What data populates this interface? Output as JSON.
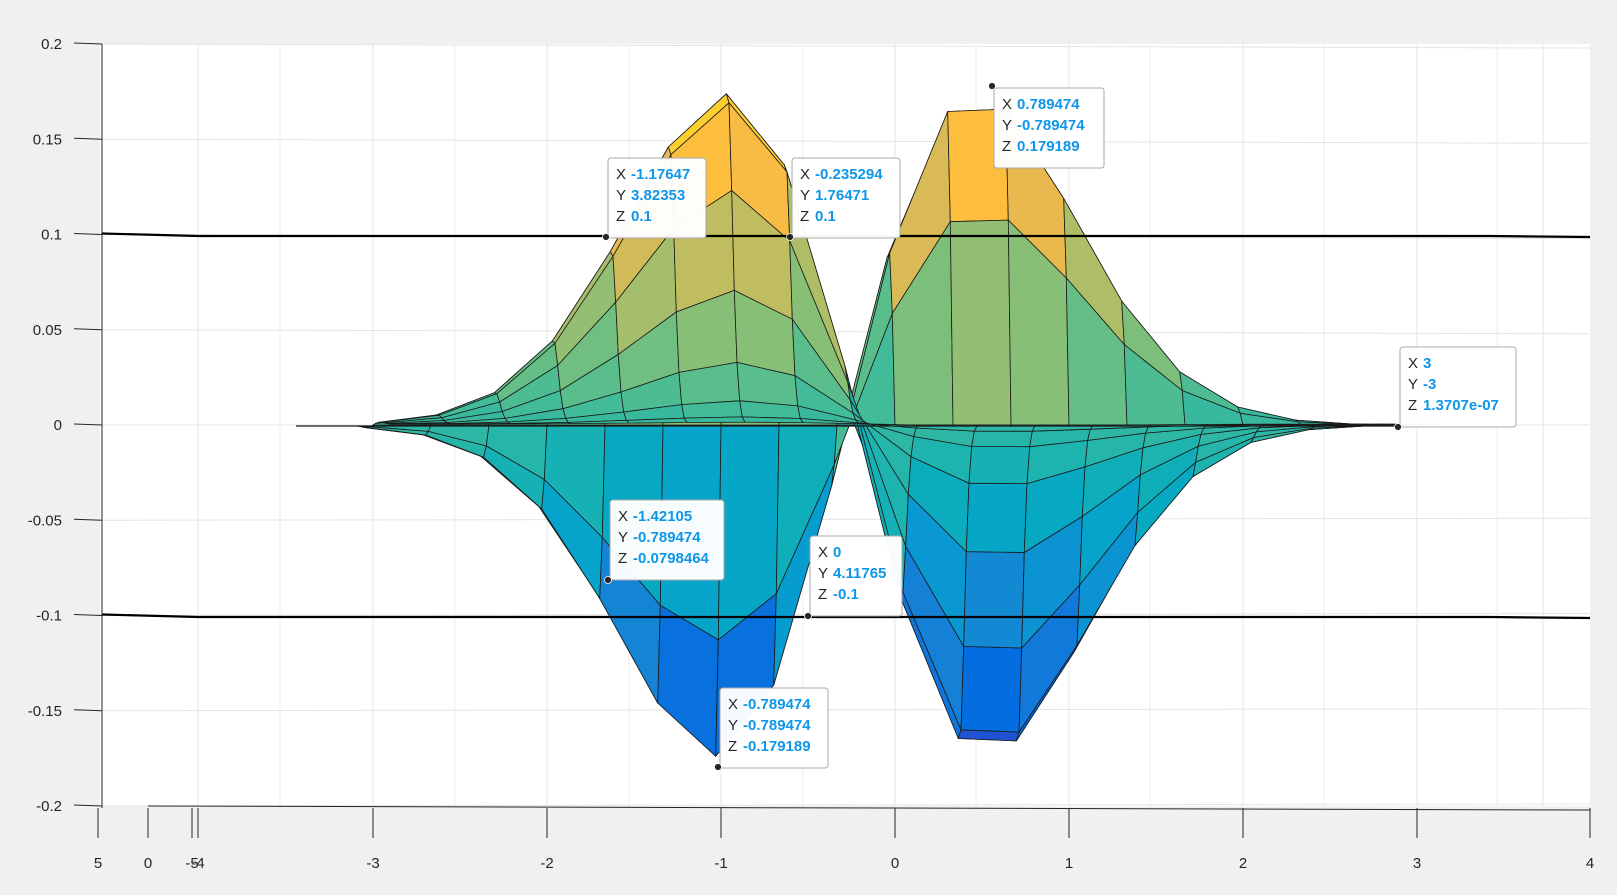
{
  "chart_data": {
    "type": "surface",
    "view": "3-D surface plot of the product of two Gaussian-type functions, seen nearly side-on along the y axis",
    "colormap": "parula",
    "grid": true,
    "z_axis": {
      "ticks": [
        "0.2",
        "0.15",
        "0.1",
        "0.05",
        "0",
        "-0.05",
        "-0.1",
        "-0.15",
        "-0.2"
      ],
      "range": [
        -0.2,
        0.2
      ]
    },
    "x_axis": {
      "ticks": [
        "5",
        "0",
        "-5",
        "-4",
        "-3",
        "-2",
        "-1",
        "0",
        "1",
        "2",
        "3",
        "4"
      ],
      "range": [
        -4,
        4
      ]
    },
    "contour_planes": [
      0.1,
      -0.1
    ],
    "peaks": [
      {
        "x": -1.0,
        "z": 0.179
      },
      {
        "x": 0.5,
        "z": 0.179
      },
      {
        "x": -1.0,
        "z": -0.179
      },
      {
        "x": 0.5,
        "z": -0.179
      }
    ],
    "datatips": [
      {
        "x": "-1.17647",
        "y": "3.82353",
        "z": "0.1"
      },
      {
        "x": "-0.235294",
        "y": "1.76471",
        "z": "0.1"
      },
      {
        "x": "0.789474",
        "y": "-0.789474",
        "z": "0.179189"
      },
      {
        "x": "3",
        "y": "-3",
        "z": "1.3707e-07"
      },
      {
        "x": "-1.42105",
        "y": "-0.789474",
        "z": "-0.0798464"
      },
      {
        "x": "0",
        "y": "4.11765",
        "z": "-0.1"
      },
      {
        "x": "-0.789474",
        "y": "-0.789474",
        "z": "-0.179189"
      }
    ],
    "datatip_labels": {
      "x": "X",
      "y": "Y",
      "z": "Z"
    }
  }
}
